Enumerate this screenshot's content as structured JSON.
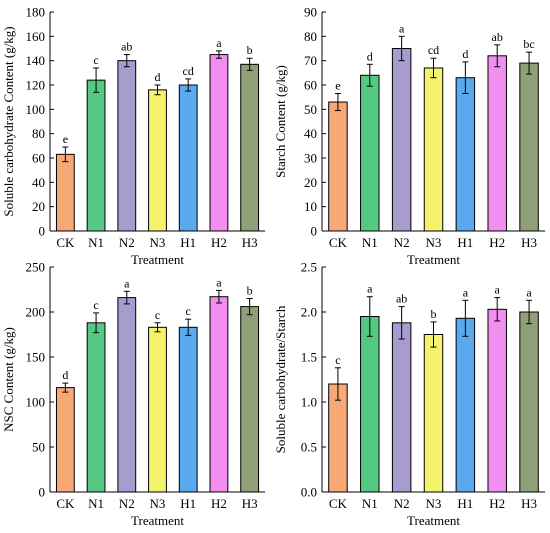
{
  "chart_data": [
    {
      "type": "bar",
      "categories": [
        "CK",
        "N1",
        "N2",
        "N3",
        "H1",
        "H2",
        "H3"
      ],
      "values": [
        63,
        124,
        140,
        116,
        120,
        145,
        137
      ],
      "errors": [
        6,
        10,
        5,
        4,
        5,
        3,
        5
      ],
      "letters": [
        "e",
        "c",
        "ab",
        "d",
        "cd",
        "a",
        "b"
      ],
      "title": "",
      "xlabel": "Treatment",
      "ylabel": "Soluble carbohydrate Content (g/kg)",
      "ylim": [
        0,
        180
      ],
      "yticks": [
        0,
        20,
        40,
        60,
        80,
        100,
        120,
        140,
        160,
        180
      ],
      "ytick_labels": [
        "0",
        "20",
        "40",
        "60",
        "80",
        "100",
        "120",
        "140",
        "160",
        "180"
      ]
    },
    {
      "type": "bar",
      "categories": [
        "CK",
        "N1",
        "N2",
        "N3",
        "H1",
        "H2",
        "H3"
      ],
      "values": [
        53,
        64,
        75,
        67,
        63,
        72,
        69
      ],
      "errors": [
        3.5,
        4.5,
        5,
        4,
        6.5,
        4.5,
        4.5
      ],
      "letters": [
        "e",
        "d",
        "a",
        "cd",
        "d",
        "ab",
        "bc"
      ],
      "title": "",
      "xlabel": "Treatment",
      "ylabel": "Starch Content (g/kg)",
      "ylim": [
        0,
        90
      ],
      "yticks": [
        0,
        10,
        20,
        30,
        40,
        50,
        60,
        70,
        80,
        90
      ],
      "ytick_labels": [
        "0",
        "10",
        "20",
        "30",
        "40",
        "50",
        "60",
        "70",
        "80",
        "90"
      ]
    },
    {
      "type": "bar",
      "categories": [
        "CK",
        "N1",
        "N2",
        "N3",
        "H1",
        "H2",
        "H3"
      ],
      "values": [
        116,
        188,
        216,
        183,
        183,
        217,
        206
      ],
      "errors": [
        5,
        11,
        7,
        5,
        9,
        7,
        9
      ],
      "letters": [
        "d",
        "c",
        "a",
        "c",
        "c",
        "a",
        "b"
      ],
      "title": "",
      "xlabel": "Treatment",
      "ylabel": "NSC Content (g/kg)",
      "ylim": [
        0,
        250
      ],
      "yticks": [
        0,
        50,
        100,
        150,
        200,
        250
      ],
      "ytick_labels": [
        "0",
        "50",
        "100",
        "150",
        "200",
        "250"
      ]
    },
    {
      "type": "bar",
      "categories": [
        "CK",
        "N1",
        "N2",
        "N3",
        "H1",
        "H2",
        "H3"
      ],
      "values": [
        1.2,
        1.95,
        1.88,
        1.75,
        1.93,
        2.03,
        2.0
      ],
      "errors": [
        0.18,
        0.22,
        0.18,
        0.14,
        0.2,
        0.13,
        0.13
      ],
      "letters": [
        "c",
        "a",
        "ab",
        "b",
        "a",
        "a",
        "a"
      ],
      "title": "",
      "xlabel": "Treatment",
      "ylabel": "Soluble carbohydrate/Starch",
      "ylim": [
        0,
        2.5
      ],
      "yticks": [
        0,
        0.5,
        1.0,
        1.5,
        2.0,
        2.5
      ],
      "ytick_labels": [
        "0.0",
        "0.5",
        "1.0",
        "1.5",
        "2.0",
        "2.5"
      ]
    }
  ],
  "bar_colors": [
    "#f8a777",
    "#55c884",
    "#a79ccd",
    "#f3f36e",
    "#5aa8ee",
    "#f08ff0",
    "#8f9f78"
  ]
}
